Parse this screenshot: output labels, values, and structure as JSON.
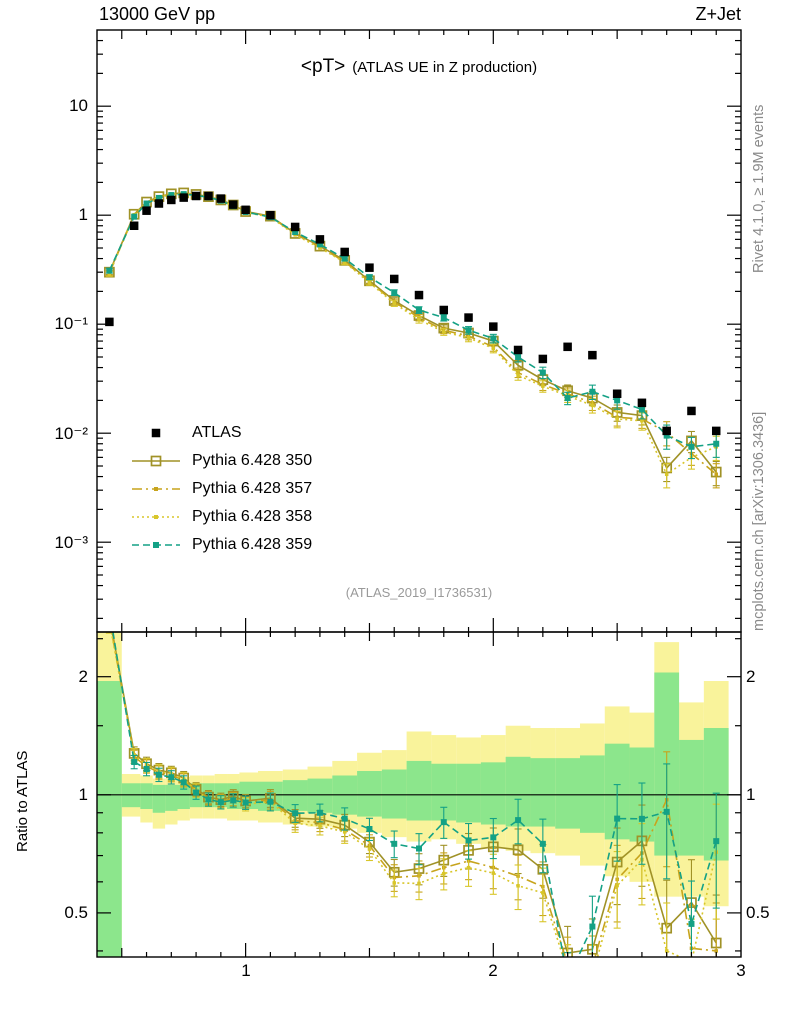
{
  "header": {
    "left": "13000 GeV pp",
    "right": "Z+Jet"
  },
  "title": {
    "main": "<pT>",
    "sub": "(ATLAS UE in Z production)"
  },
  "watermark": "(ATLAS_2019_I1736531)",
  "side_notes": {
    "rivet": "Rivet 4.1.0, ≥ 1.9M events",
    "mcplots": "mcplots.cern.ch [arXiv:1306.3436]"
  },
  "ratio_ylabel": "Ratio to ATLAS",
  "axes": {
    "main_yticks": [
      "10",
      "1",
      "10⁻¹",
      "10⁻²",
      "10⁻³"
    ],
    "ratio_yticks": [
      "2",
      "1",
      "0.5"
    ],
    "xticks": [
      "1",
      "2",
      "3"
    ]
  },
  "colors": {
    "frame": "#000000",
    "band_yellow": "#f9f39b",
    "band_green": "#8ce68c",
    "watermark": "#9a9a9a",
    "margin_text": "#8a8a8a"
  },
  "chart_data": {
    "type": "line",
    "title": "<pT> (ATLAS UE in Z production)",
    "xlabel": "",
    "ylabel": "",
    "legend_position": "middle-left",
    "x_scale": "linear",
    "y_scale_main": "log",
    "y_scale_ratio": "log",
    "xlim": [
      0.4,
      3.0
    ],
    "ylim_main": [
      0.00015,
      50
    ],
    "ylim_ratio": [
      0.386,
      2.6
    ],
    "x": [
      0.45,
      0.55,
      0.6,
      0.65,
      0.7,
      0.75,
      0.8,
      0.85,
      0.9,
      0.95,
      1.0,
      1.1,
      1.2,
      1.3,
      1.4,
      1.5,
      1.6,
      1.7,
      1.8,
      1.9,
      2.0,
      2.1,
      2.2,
      2.3,
      2.4,
      2.5,
      2.6,
      2.7,
      2.8,
      2.9
    ],
    "series": [
      {
        "name": "ATLAS",
        "color": "#000000",
        "line": "none",
        "marker": "square-filled",
        "marker_size": 8.5,
        "values": [
          0.105,
          0.8,
          1.1,
          1.28,
          1.38,
          1.45,
          1.5,
          1.5,
          1.42,
          1.25,
          1.12,
          1.0,
          0.78,
          0.6,
          0.46,
          0.33,
          0.26,
          0.185,
          0.135,
          0.115,
          0.095,
          0.058,
          0.048,
          0.062,
          0.052,
          0.023,
          0.019,
          0.0105,
          0.016,
          0.0105
        ]
      },
      {
        "name": "Pythia 6.428 350",
        "color": "#a09227",
        "line": "solid",
        "marker": "square-open",
        "marker_size": 9,
        "values": [
          0.3,
          1.02,
          1.32,
          1.48,
          1.57,
          1.6,
          1.55,
          1.48,
          1.38,
          1.24,
          1.08,
          0.98,
          0.68,
          0.52,
          0.385,
          0.25,
          0.165,
          0.12,
          0.092,
          0.083,
          0.07,
          0.042,
          0.031,
          0.0245,
          0.021,
          0.0155,
          0.0145,
          0.0048,
          0.0085,
          0.0044
        ]
      },
      {
        "name": "Pythia 6.428 357",
        "color": "#c7a41c",
        "line": "dashdot",
        "marker": "square-small",
        "marker_size": 3.5,
        "values": [
          0.295,
          1.0,
          1.3,
          1.46,
          1.55,
          1.58,
          1.54,
          1.47,
          1.37,
          1.22,
          1.07,
          0.97,
          0.67,
          0.51,
          0.375,
          0.245,
          0.16,
          0.115,
          0.088,
          0.078,
          0.062,
          0.036,
          0.028,
          0.023,
          0.019,
          0.014,
          0.0135,
          0.0102,
          0.0065,
          0.0042
        ]
      },
      {
        "name": "Pythia 6.428 358",
        "color": "#d8c62a",
        "line": "dotted",
        "marker": "square-small",
        "marker_size": 3.5,
        "values": [
          0.29,
          1.01,
          1.31,
          1.47,
          1.56,
          1.59,
          1.54,
          1.46,
          1.36,
          1.21,
          1.06,
          0.96,
          0.66,
          0.5,
          0.37,
          0.24,
          0.155,
          0.11,
          0.085,
          0.075,
          0.06,
          0.034,
          0.027,
          0.022,
          0.018,
          0.0135,
          0.013,
          0.0042,
          0.006,
          0.0075
        ]
      },
      {
        "name": "Pythia 6.428 359",
        "color": "#14a185",
        "line": "dashed",
        "marker": "square-filled",
        "marker_size": 6,
        "values": [
          0.31,
          0.97,
          1.28,
          1.44,
          1.53,
          1.56,
          1.52,
          1.46,
          1.36,
          1.21,
          1.07,
          0.96,
          0.7,
          0.54,
          0.4,
          0.27,
          0.195,
          0.135,
          0.115,
          0.088,
          0.074,
          0.05,
          0.036,
          0.021,
          0.024,
          0.02,
          0.0165,
          0.0095,
          0.0075,
          0.008
        ]
      }
    ],
    "mc_err_frac": [
      0.05,
      0.03,
      0.03,
      0.03,
      0.03,
      0.03,
      0.03,
      0.03,
      0.03,
      0.03,
      0.03,
      0.04,
      0.04,
      0.04,
      0.05,
      0.05,
      0.06,
      0.07,
      0.07,
      0.08,
      0.09,
      0.1,
      0.12,
      0.13,
      0.15,
      0.17,
      0.18,
      0.25,
      0.22,
      0.25
    ],
    "ratio_reference": 1,
    "ratio_bands": {
      "edges": [
        0.4,
        0.5,
        0.575,
        0.625,
        0.675,
        0.725,
        0.775,
        0.825,
        0.875,
        0.925,
        0.975,
        1.05,
        1.15,
        1.25,
        1.35,
        1.45,
        1.55,
        1.65,
        1.75,
        1.85,
        1.95,
        2.05,
        2.15,
        2.25,
        2.35,
        2.45,
        2.55,
        2.65,
        2.75,
        2.85,
        2.95
      ],
      "yellow": [
        [
          0.35,
          2.6
        ],
        [
          0.88,
          1.13
        ],
        [
          0.85,
          1.12
        ],
        [
          0.82,
          1.1
        ],
        [
          0.84,
          1.1
        ],
        [
          0.86,
          1.11
        ],
        [
          0.87,
          1.12
        ],
        [
          0.87,
          1.12
        ],
        [
          0.87,
          1.13
        ],
        [
          0.86,
          1.13
        ],
        [
          0.86,
          1.14
        ],
        [
          0.85,
          1.15
        ],
        [
          0.84,
          1.16
        ],
        [
          0.83,
          1.18
        ],
        [
          0.82,
          1.22
        ],
        [
          0.8,
          1.28
        ],
        [
          0.78,
          1.3
        ],
        [
          0.76,
          1.45
        ],
        [
          0.77,
          1.42
        ],
        [
          0.75,
          1.4
        ],
        [
          0.73,
          1.42
        ],
        [
          0.72,
          1.5
        ],
        [
          0.71,
          1.48
        ],
        [
          0.7,
          1.48
        ],
        [
          0.66,
          1.52
        ],
        [
          0.62,
          1.68
        ],
        [
          0.6,
          1.62
        ],
        [
          0.55,
          2.45
        ],
        [
          0.55,
          1.72
        ],
        [
          0.52,
          1.95
        ]
      ],
      "green": [
        [
          0.35,
          1.95
        ],
        [
          0.93,
          1.07
        ],
        [
          0.92,
          1.07
        ],
        [
          0.9,
          1.06
        ],
        [
          0.91,
          1.06
        ],
        [
          0.92,
          1.06
        ],
        [
          0.93,
          1.07
        ],
        [
          0.93,
          1.07
        ],
        [
          0.93,
          1.07
        ],
        [
          0.92,
          1.07
        ],
        [
          0.92,
          1.08
        ],
        [
          0.91,
          1.08
        ],
        [
          0.91,
          1.09
        ],
        [
          0.9,
          1.1
        ],
        [
          0.89,
          1.12
        ],
        [
          0.88,
          1.15
        ],
        [
          0.87,
          1.16
        ],
        [
          0.86,
          1.22
        ],
        [
          0.86,
          1.2
        ],
        [
          0.85,
          1.2
        ],
        [
          0.84,
          1.21
        ],
        [
          0.83,
          1.25
        ],
        [
          0.83,
          1.24
        ],
        [
          0.82,
          1.24
        ],
        [
          0.8,
          1.26
        ],
        [
          0.77,
          1.35
        ],
        [
          0.76,
          1.32
        ],
        [
          0.7,
          2.05
        ],
        [
          0.7,
          1.38
        ],
        [
          0.68,
          1.48
        ]
      ]
    }
  }
}
